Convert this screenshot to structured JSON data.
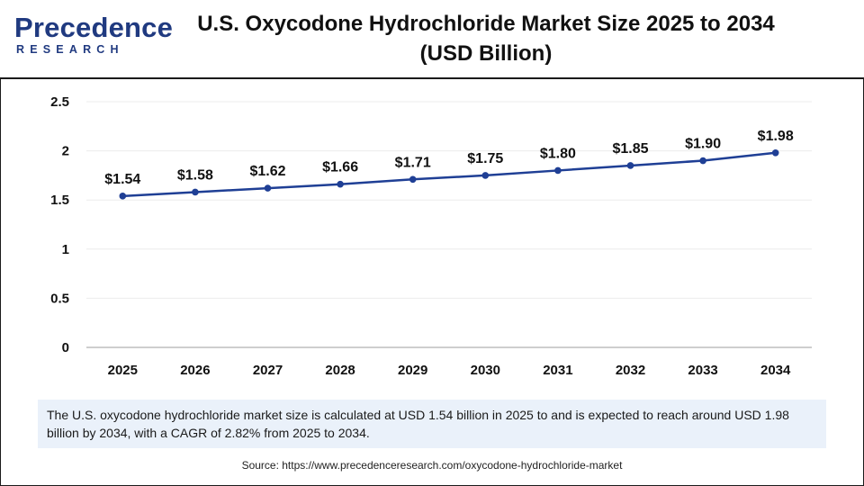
{
  "header": {
    "logo_word": "Precedence",
    "logo_sub": "RESEARCH",
    "title_line1": "U.S. Oxycodone Hydrochloride Market Size 2025 to 2034",
    "title_line2": "(USD Billion)"
  },
  "colors": {
    "line": "#1f3f95",
    "brand": "#203a80",
    "note_bg": "#eaf1fa"
  },
  "chart_data": {
    "type": "line",
    "title": "U.S. Oxycodone Hydrochloride Market Size 2025 to 2034 (USD Billion)",
    "xlabel": "",
    "ylabel": "",
    "categories": [
      "2025",
      "2026",
      "2027",
      "2028",
      "2029",
      "2030",
      "2031",
      "2032",
      "2033",
      "2034"
    ],
    "values": [
      1.54,
      1.58,
      1.62,
      1.66,
      1.71,
      1.75,
      1.8,
      1.85,
      1.9,
      1.98
    ],
    "data_labels": [
      "$1.54",
      "$1.58",
      "$1.62",
      "$1.66",
      "$1.71",
      "$1.75",
      "$1.80",
      "$1.85",
      "$1.90",
      "$1.98"
    ],
    "y_ticks": [
      "0",
      "0.5",
      "1",
      "1.5",
      "2",
      "2.5"
    ],
    "ylim": [
      0,
      2.5
    ],
    "grid": true,
    "legend": "none"
  },
  "note": {
    "text": "The U.S. oxycodone hydrochloride market size is calculated at USD 1.54 billion in 2025 to and is expected to reach around USD 1.98 billion by 2034, with a CAGR of 2.82% from 2025 to 2034."
  },
  "source": {
    "text": "Source: https://www.precedenceresearch.com/oxycodone-hydrochloride-market"
  }
}
